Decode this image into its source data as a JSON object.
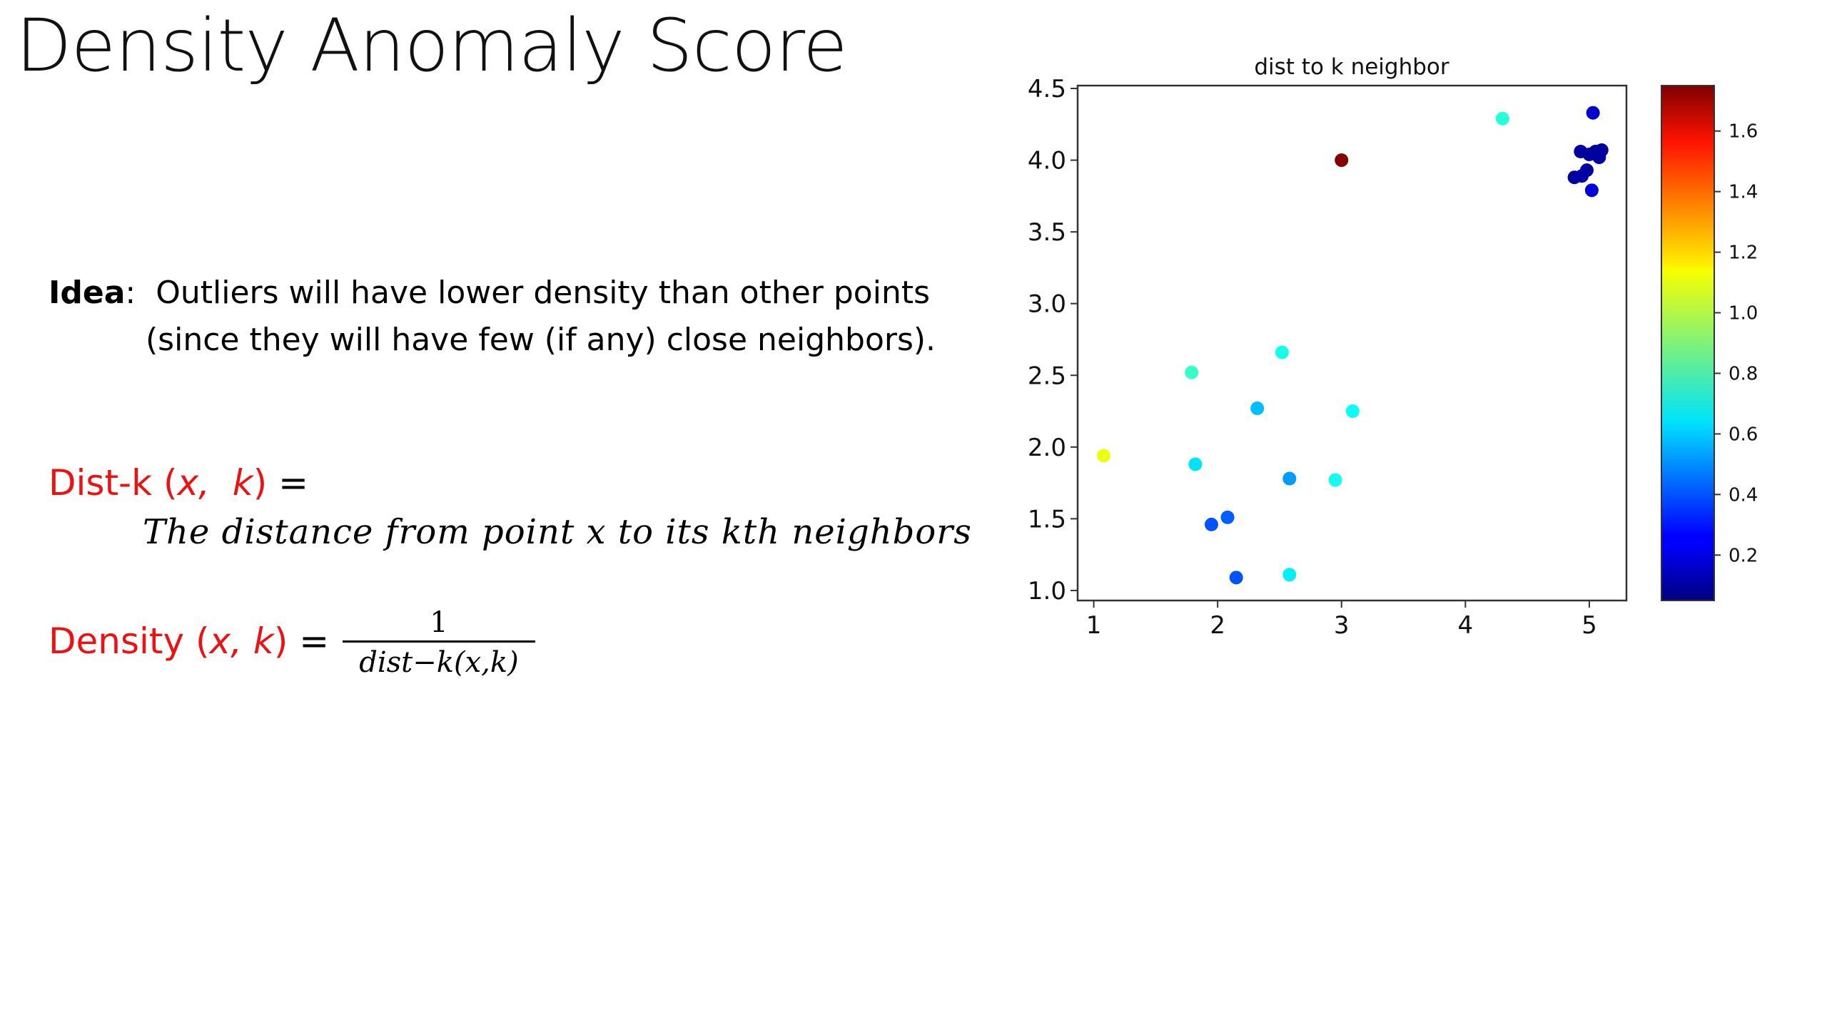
{
  "slide": {
    "title": "Density Anomaly Score",
    "idea_keyword": "Idea",
    "idea_colon": ":",
    "idea_line1": "Outliers will have lower density than other points",
    "idea_line2": "(since they will have few (if any) close neighbors).",
    "distk": {
      "label": "Dist-k",
      "open": "(",
      "x": "x,",
      "k": "k",
      "close": ")",
      "eq": "="
    },
    "distk_def": "The distance from point x to its kth neighbors",
    "density": {
      "label": "Density",
      "open": "(",
      "x": "x,",
      "k": "k",
      "close": ")",
      "eq": "="
    },
    "density_num": "1",
    "density_den": "dist−k(x,k)"
  },
  "chart_data": {
    "type": "scatter",
    "title": "dist to k neighbor",
    "xlabel": "",
    "ylabel": "",
    "xlim": [
      0.87,
      5.3
    ],
    "ylim": [
      0.93,
      4.52
    ],
    "xticks": [
      1,
      2,
      3,
      4,
      5
    ],
    "yticks": [
      1.0,
      1.5,
      2.0,
      2.5,
      3.0,
      3.5,
      4.0,
      4.5
    ],
    "colormap": "jet",
    "colorbar": {
      "range": [
        0.05,
        1.75
      ],
      "ticks": [
        0.2,
        0.4,
        0.6,
        0.8,
        1.0,
        1.2,
        1.4,
        1.6
      ]
    },
    "points": [
      {
        "x": 3.0,
        "y": 4.0,
        "c": 1.74
      },
      {
        "x": 4.3,
        "y": 4.29,
        "c": 0.75
      },
      {
        "x": 5.03,
        "y": 4.33,
        "c": 0.18
      },
      {
        "x": 4.93,
        "y": 4.06,
        "c": 0.1
      },
      {
        "x": 5.0,
        "y": 4.04,
        "c": 0.1
      },
      {
        "x": 5.05,
        "y": 4.06,
        "c": 0.1
      },
      {
        "x": 5.08,
        "y": 4.02,
        "c": 0.1
      },
      {
        "x": 5.1,
        "y": 4.07,
        "c": 0.1
      },
      {
        "x": 4.98,
        "y": 3.93,
        "c": 0.1
      },
      {
        "x": 4.88,
        "y": 3.88,
        "c": 0.1
      },
      {
        "x": 4.94,
        "y": 3.89,
        "c": 0.12
      },
      {
        "x": 5.02,
        "y": 3.79,
        "c": 0.2
      },
      {
        "x": 2.52,
        "y": 2.66,
        "c": 0.72
      },
      {
        "x": 1.79,
        "y": 2.52,
        "c": 0.78
      },
      {
        "x": 2.32,
        "y": 2.27,
        "c": 0.58
      },
      {
        "x": 3.09,
        "y": 2.25,
        "c": 0.7
      },
      {
        "x": 1.08,
        "y": 1.94,
        "c": 1.08
      },
      {
        "x": 1.82,
        "y": 1.88,
        "c": 0.64
      },
      {
        "x": 2.58,
        "y": 1.78,
        "c": 0.52
      },
      {
        "x": 2.95,
        "y": 1.77,
        "c": 0.72
      },
      {
        "x": 2.08,
        "y": 1.51,
        "c": 0.42
      },
      {
        "x": 1.95,
        "y": 1.46,
        "c": 0.4
      },
      {
        "x": 2.15,
        "y": 1.09,
        "c": 0.4
      },
      {
        "x": 2.58,
        "y": 1.11,
        "c": 0.66
      }
    ]
  }
}
